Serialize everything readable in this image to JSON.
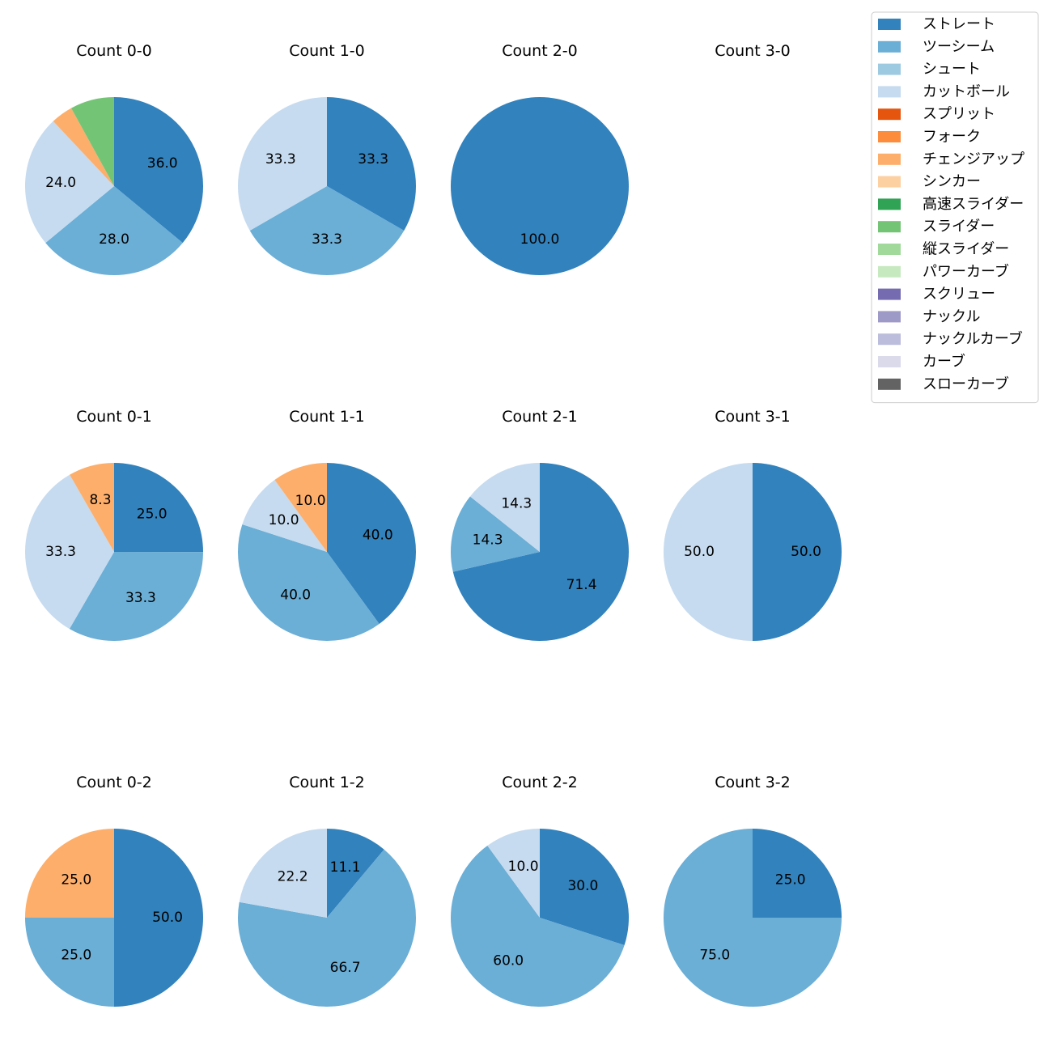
{
  "chart_data": {
    "type": "pie",
    "legend": {
      "placement": "top-right",
      "entries": [
        {
          "name": "ストレート",
          "color": "#3182bd"
        },
        {
          "name": "ツーシーム",
          "color": "#6baed6"
        },
        {
          "name": "シュート",
          "color": "#9ecae1"
        },
        {
          "name": "カットボール",
          "color": "#c6dbef"
        },
        {
          "name": "スプリット",
          "color": "#e6550d"
        },
        {
          "name": "フォーク",
          "color": "#fd8d3c"
        },
        {
          "name": "チェンジアップ",
          "color": "#fdae6b"
        },
        {
          "name": "シンカー",
          "color": "#fdd0a2"
        },
        {
          "name": "高速スライダー",
          "color": "#31a354"
        },
        {
          "name": "スライダー",
          "color": "#74c476"
        },
        {
          "name": "縦スライダー",
          "color": "#a1d99b"
        },
        {
          "name": "パワーカーブ",
          "color": "#c7e9c0"
        },
        {
          "name": "スクリュー",
          "color": "#756bb1"
        },
        {
          "name": "ナックル",
          "color": "#9e9ac8"
        },
        {
          "name": "ナックルカーブ",
          "color": "#bcbddc"
        },
        {
          "name": "カーブ",
          "color": "#dadaeb"
        },
        {
          "name": "スローカーブ",
          "color": "#636363"
        }
      ]
    },
    "pies": [
      {
        "title": "Count 0-0",
        "slices": [
          {
            "pitch": "ストレート",
            "value": 36.0,
            "label": "36.0"
          },
          {
            "pitch": "ツーシーム",
            "value": 28.0,
            "label": "28.0"
          },
          {
            "pitch": "カットボール",
            "value": 24.0,
            "label": "24.0"
          },
          {
            "pitch": "チェンジアップ",
            "value": 4.0,
            "label": ""
          },
          {
            "pitch": "スライダー",
            "value": 8.0,
            "label": ""
          }
        ]
      },
      {
        "title": "Count 1-0",
        "slices": [
          {
            "pitch": "ストレート",
            "value": 33.3,
            "label": "33.3"
          },
          {
            "pitch": "ツーシーム",
            "value": 33.3,
            "label": "33.3"
          },
          {
            "pitch": "カットボール",
            "value": 33.3,
            "label": "33.3"
          }
        ]
      },
      {
        "title": "Count 2-0",
        "slices": [
          {
            "pitch": "ストレート",
            "value": 100.0,
            "label": "100.0"
          }
        ]
      },
      {
        "title": "Count 3-0",
        "slices": []
      },
      {
        "title": "Count 0-1",
        "slices": [
          {
            "pitch": "ストレート",
            "value": 25.0,
            "label": "25.0"
          },
          {
            "pitch": "ツーシーム",
            "value": 33.3,
            "label": "33.3"
          },
          {
            "pitch": "カットボール",
            "value": 33.3,
            "label": "33.3"
          },
          {
            "pitch": "チェンジアップ",
            "value": 8.3,
            "label": "8.3"
          }
        ]
      },
      {
        "title": "Count 1-1",
        "slices": [
          {
            "pitch": "ストレート",
            "value": 40.0,
            "label": "40.0"
          },
          {
            "pitch": "ツーシーム",
            "value": 40.0,
            "label": "40.0"
          },
          {
            "pitch": "カットボール",
            "value": 10.0,
            "label": "10.0"
          },
          {
            "pitch": "チェンジアップ",
            "value": 10.0,
            "label": "10.0"
          }
        ]
      },
      {
        "title": "Count 2-1",
        "slices": [
          {
            "pitch": "ストレート",
            "value": 71.4,
            "label": "71.4"
          },
          {
            "pitch": "ツーシーム",
            "value": 14.3,
            "label": "14.3"
          },
          {
            "pitch": "カットボール",
            "value": 14.3,
            "label": "14.3"
          }
        ]
      },
      {
        "title": "Count 3-1",
        "slices": [
          {
            "pitch": "ストレート",
            "value": 50.0,
            "label": "50.0"
          },
          {
            "pitch": "カットボール",
            "value": 50.0,
            "label": "50.0"
          }
        ]
      },
      {
        "title": "Count 0-2",
        "slices": [
          {
            "pitch": "ストレート",
            "value": 50.0,
            "label": "50.0"
          },
          {
            "pitch": "ツーシーム",
            "value": 25.0,
            "label": "25.0"
          },
          {
            "pitch": "チェンジアップ",
            "value": 25.0,
            "label": "25.0"
          }
        ]
      },
      {
        "title": "Count 1-2",
        "slices": [
          {
            "pitch": "ストレート",
            "value": 11.1,
            "label": "11.1"
          },
          {
            "pitch": "ツーシーム",
            "value": 66.7,
            "label": "66.7"
          },
          {
            "pitch": "カットボール",
            "value": 22.2,
            "label": "22.2"
          }
        ]
      },
      {
        "title": "Count 2-2",
        "slices": [
          {
            "pitch": "ストレート",
            "value": 30.0,
            "label": "30.0"
          },
          {
            "pitch": "ツーシーム",
            "value": 60.0,
            "label": "60.0"
          },
          {
            "pitch": "カットボール",
            "value": 10.0,
            "label": "10.0"
          }
        ]
      },
      {
        "title": "Count 3-2",
        "slices": [
          {
            "pitch": "ストレート",
            "value": 25.0,
            "label": "25.0"
          },
          {
            "pitch": "ツーシーム",
            "value": 75.0,
            "label": "75.0"
          }
        ]
      }
    ]
  }
}
